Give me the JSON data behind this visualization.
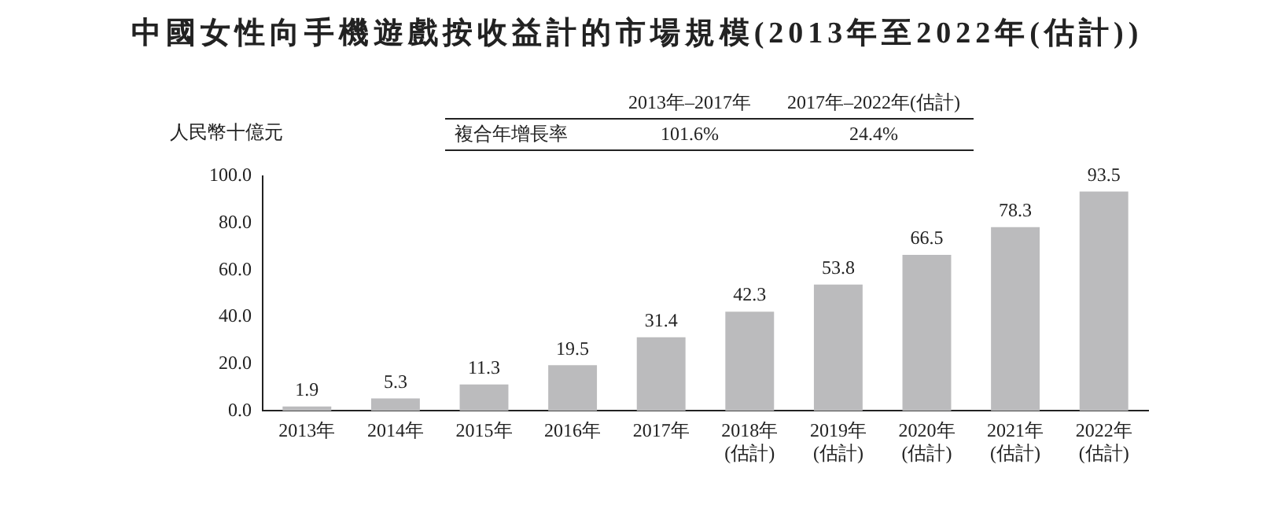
{
  "chart_data": {
    "type": "bar",
    "title": "中國女性向手機遊戲按收益計的市場規模(2013年至2022年(估計))",
    "ylabel": "人民幣十億元",
    "categories": [
      "2013年",
      "2014年",
      "2015年",
      "2016年",
      "2017年",
      "2018年(估計)",
      "2019年(估計)",
      "2020年(估計)",
      "2021年(估計)",
      "2022年(估計)"
    ],
    "values": [
      1.9,
      5.3,
      11.3,
      19.5,
      31.4,
      42.3,
      53.8,
      66.5,
      78.3,
      93.5
    ],
    "color": "#bbbbbd",
    "ylim": [
      0,
      100
    ],
    "yticks": [
      {
        "value": 0,
        "label": "0.0"
      },
      {
        "value": 20,
        "label": "20.0"
      },
      {
        "value": 40,
        "label": "40.0"
      },
      {
        "value": 60,
        "label": "60.0"
      },
      {
        "value": 80,
        "label": "80.0"
      },
      {
        "value": 100,
        "label": "100.0"
      }
    ],
    "grid": false,
    "legend": false,
    "data_labels": true,
    "annotations": [
      "2013年–2017年",
      "2017年–2022年(估計)",
      "複合年增長率",
      "101.6%",
      "24.4%"
    ]
  }
}
